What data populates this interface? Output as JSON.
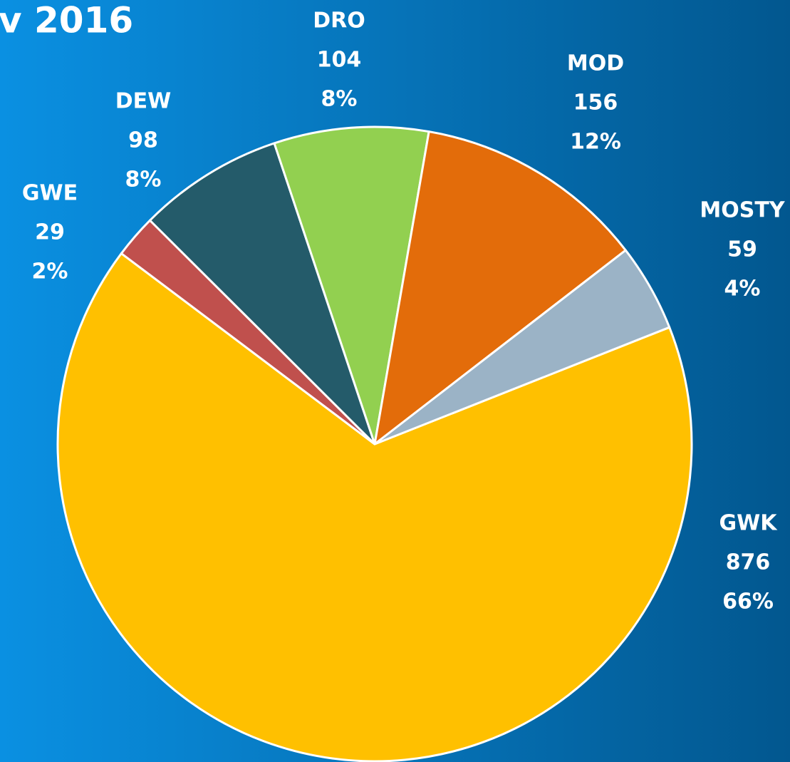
{
  "chart_data": {
    "type": "pie",
    "title": "v 2016",
    "categories": [
      "GWK",
      "GWE",
      "DEW",
      "DRO",
      "MOD",
      "MOSTY"
    ],
    "values": [
      876,
      29,
      98,
      104,
      156,
      59
    ],
    "percent_labels": [
      "66%",
      "2%",
      "8%",
      "8%",
      "12%",
      "4%"
    ],
    "colors": [
      "#FFC000",
      "#C0504D",
      "#245B6A",
      "#92D050",
      "#E36C0A",
      "#9BB3C6"
    ]
  }
}
